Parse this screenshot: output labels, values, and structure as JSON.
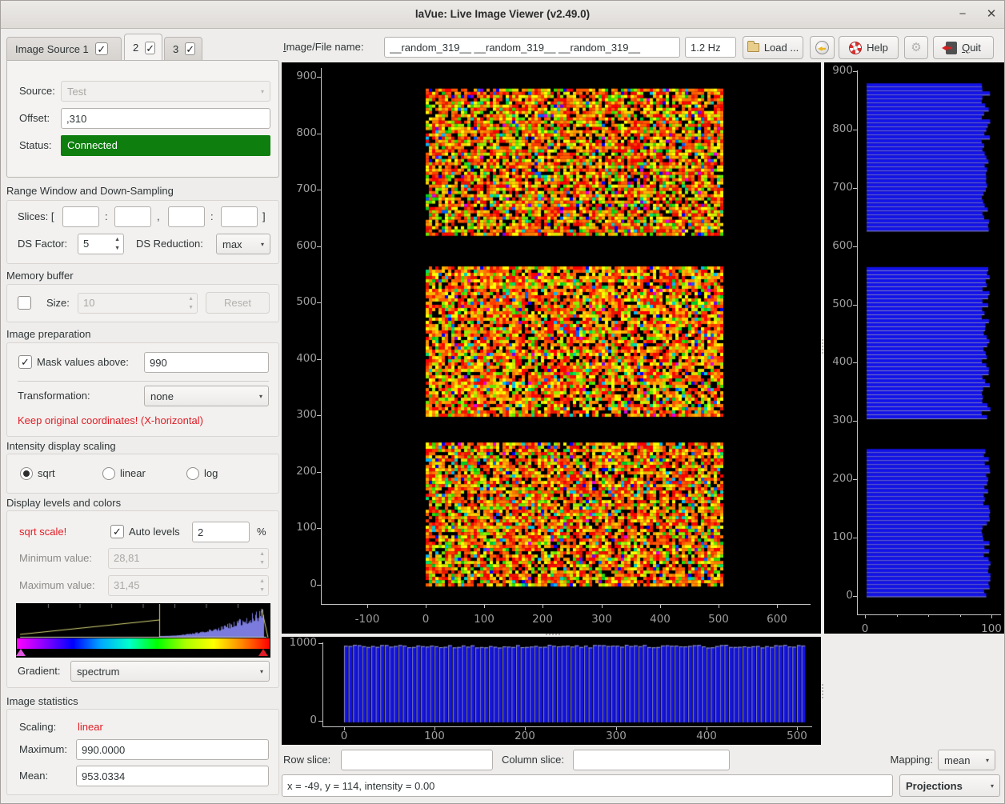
{
  "window": {
    "title": "laVue: Live Image Viewer (v2.49.0)"
  },
  "icons": {
    "check": "✓",
    "dropdown": "▾",
    "spin_up": "▲",
    "spin_down": "▼",
    "minimize": "−",
    "close": "✕",
    "gear": "⚙"
  },
  "colors": {
    "warning_red": "#e01b24",
    "status_green": "#0e7e0e",
    "bar_blue": "#1313e8",
    "bar_edge": "#9c9cba",
    "tick_text": "#9e9e9e",
    "axis_line": "#c4c4c4",
    "hist_line_yellow": "#d8d877",
    "hist_fill_blue": "#7b7bdd"
  },
  "toolbar": {
    "file_label": "Image/File name:",
    "file_value": "__random_319__ __random_319__ __random_319__",
    "rate_value": "1.2 Hz",
    "load_label": "Load ...",
    "help_label": "Help",
    "quit_label": "Quit"
  },
  "tabs": {
    "tab1": "Image Source 1",
    "tab2": "2",
    "tab3": "3"
  },
  "source_panel": {
    "source_label": "Source:",
    "source_value": "Test",
    "offset_label": "Offset:",
    "offset_value": ",310",
    "status_label": "Status:",
    "status_value": "Connected"
  },
  "range_section": {
    "title": "Range Window and Down-Sampling",
    "slices_label": "Slices: [",
    "colon1": ":",
    "comma": ",",
    "colon2": ":",
    "bracket": "]",
    "ds_factor_label": "DS Factor:",
    "ds_factor_value": "5",
    "ds_reduction_label": "DS Reduction:",
    "ds_reduction_value": "max"
  },
  "memory_section": {
    "title": "Memory buffer",
    "size_label": "Size:",
    "size_value": "10",
    "reset_label": "Reset"
  },
  "preparation_section": {
    "title": "Image preparation",
    "mask_label": "Mask values above:",
    "mask_value": "990",
    "transformation_label": "Transformation:",
    "transformation_value": "none",
    "warning": "Keep original coordinates! (X-horizontal)"
  },
  "scaling_section": {
    "title": "Intensity display scaling",
    "options": [
      "sqrt",
      "linear",
      "log"
    ],
    "selected": "sqrt"
  },
  "levels_section": {
    "title": "Display levels and colors",
    "scale_note": "sqrt scale!",
    "auto_levels_label": "Auto levels",
    "auto_levels_value": "2",
    "percent": "%",
    "min_label": "Minimum value:",
    "min_value": "28,81",
    "max_label": "Maximum value:",
    "max_value": "31,45",
    "gradient_label": "Gradient:",
    "gradient_value": "spectrum",
    "gradient_stops": [
      "#ff00ff",
      "#8800ff",
      "#0000ff",
      "#00aaff",
      "#00ffcc",
      "#00ff00",
      "#aaff00",
      "#ffff00",
      "#ff8800",
      "#ff0000"
    ]
  },
  "statistics_section": {
    "title": "Image statistics",
    "scaling_label": "Scaling:",
    "scaling_value": "linear",
    "maximum_label": "Maximum:",
    "maximum_value": "990.0000",
    "mean_label": "Mean:",
    "mean_value": "953.0334"
  },
  "bottom_bar": {
    "row_slice_label": "Row slice:",
    "row_slice_value": "",
    "column_slice_label": "Column slice:",
    "column_slice_value": "",
    "mapping_label": "Mapping:",
    "mapping_value": "mean",
    "position_readout": "x = -49, y = 114, intensity = 0.00",
    "projections_label": "Projections"
  },
  "chart_data": [
    {
      "name": "main-image-plot",
      "type": "heatmap",
      "title": "random test image, three horizontal bands of down-sampled noise blocks",
      "x_ticks": [
        -100,
        0,
        100,
        200,
        300,
        400,
        500,
        600
      ],
      "y_ticks": [
        0,
        100,
        200,
        300,
        400,
        500,
        600,
        700,
        800,
        900
      ],
      "image_x_range": [
        0,
        505
      ],
      "image_y_bands": [
        [
          623,
          879
        ],
        [
          300,
          564
        ],
        [
          0,
          252
        ]
      ],
      "palette": [
        [
          "#000000",
          17
        ],
        [
          "#ff0000",
          10
        ],
        [
          "#ee1500",
          8
        ],
        [
          "#ff3c00",
          9
        ],
        [
          "#ff5a00",
          8
        ],
        [
          "#ff7800",
          7
        ],
        [
          "#ff9600",
          6
        ],
        [
          "#ffb400",
          5
        ],
        [
          "#ffd200",
          5
        ],
        [
          "#ffff00",
          8
        ],
        [
          "#cdee00",
          4
        ],
        [
          "#9bee00",
          3
        ],
        [
          "#66e800",
          3
        ],
        [
          "#33dd00",
          3
        ],
        [
          "#00cc22",
          2
        ],
        [
          "#00dd77",
          1
        ],
        [
          "#00d2c8",
          1
        ],
        [
          "#00bbff",
          1
        ],
        [
          "#0062ff",
          1
        ],
        [
          "#0000ff",
          1
        ],
        [
          "#7a00ee",
          0.5
        ],
        [
          "#e000e0",
          0.5
        ]
      ]
    },
    {
      "name": "row-projection-plot",
      "type": "horizontal-bar",
      "x_ticks": [
        0,
        100
      ],
      "y_ticks": [
        0,
        100,
        200,
        300,
        400,
        500,
        600,
        700,
        800,
        900
      ],
      "value_range": [
        91,
        98
      ]
    },
    {
      "name": "column-projection-plot",
      "type": "bar",
      "x_ticks": [
        0,
        100,
        200,
        300,
        400,
        500
      ],
      "y_ticks": [
        0,
        1000
      ],
      "x_range": [
        0,
        510
      ],
      "value_range": [
        938,
        974
      ]
    },
    {
      "name": "levels-histogram",
      "type": "area",
      "title": "intensity histogram with auto-level markers",
      "x_range_label_min": "28,81",
      "x_range_label_max": "31,45"
    }
  ]
}
